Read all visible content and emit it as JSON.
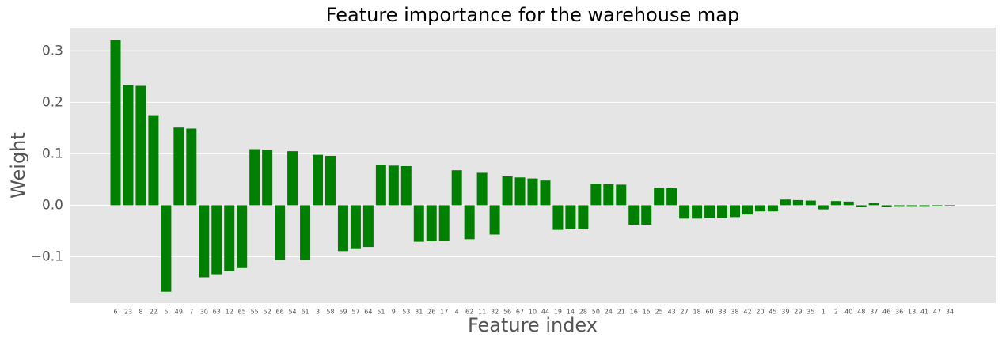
{
  "chart_data": {
    "type": "bar",
    "title": "Feature importance for the warehouse map",
    "x_label": "Feature index",
    "y_label": "Weight",
    "categories": [
      "6",
      "23",
      "8",
      "22",
      "5",
      "49",
      "7",
      "30",
      "63",
      "12",
      "65",
      "55",
      "52",
      "66",
      "54",
      "61",
      "3",
      "58",
      "59",
      "57",
      "64",
      "51",
      "9",
      "53",
      "31",
      "26",
      "17",
      "4",
      "62",
      "11",
      "32",
      "56",
      "67",
      "10",
      "44",
      "19",
      "14",
      "28",
      "50",
      "24",
      "21",
      "16",
      "15",
      "25",
      "43",
      "27",
      "18",
      "60",
      "33",
      "38",
      "42",
      "20",
      "45",
      "39",
      "29",
      "35",
      "1",
      "2",
      "40",
      "48",
      "37",
      "46",
      "36",
      "13",
      "41",
      "47",
      "34"
    ],
    "values": [
      0.321,
      0.234,
      0.232,
      0.175,
      -0.168,
      0.151,
      0.149,
      -0.14,
      -0.134,
      -0.128,
      -0.122,
      0.109,
      0.108,
      -0.106,
      0.105,
      -0.106,
      0.098,
      0.096,
      -0.089,
      -0.085,
      -0.081,
      0.079,
      0.077,
      0.076,
      -0.071,
      -0.07,
      -0.069,
      0.068,
      -0.066,
      0.063,
      -0.057,
      0.056,
      0.054,
      0.052,
      0.048,
      -0.048,
      -0.047,
      -0.047,
      0.042,
      0.041,
      0.04,
      -0.038,
      -0.038,
      0.034,
      0.033,
      -0.026,
      -0.026,
      -0.025,
      -0.025,
      -0.023,
      -0.018,
      -0.012,
      -0.012,
      0.011,
      0.01,
      0.009,
      -0.008,
      0.008,
      0.007,
      -0.004,
      0.004,
      -0.004,
      -0.003,
      -0.003,
      -0.003,
      -0.002,
      -0.001
    ],
    "color": "#008000",
    "ylim": [
      -0.19,
      0.345
    ],
    "yticks": [
      {
        "value": -0.1,
        "label": "−0.1"
      },
      {
        "value": 0,
        "label": "0.0"
      },
      0.1,
      0.2,
      0.3
    ],
    "grid": true
  }
}
